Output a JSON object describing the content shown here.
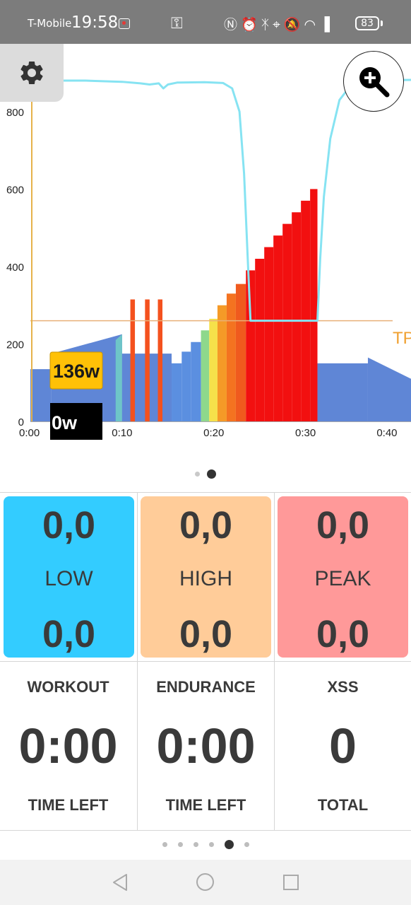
{
  "status_bar": {
    "carrier": "T-Mobile",
    "time": "19:58",
    "battery": "83",
    "icons": [
      "recording-icon",
      "key-icon",
      "nfc-icon",
      "alarm-icon",
      "bluetooth-icon",
      "location-icon",
      "mute-icon",
      "wifi-icon",
      "signal-icon",
      "battery-icon"
    ]
  },
  "chart": {
    "target_power_label": "136w",
    "current_power_label": "0w",
    "threshold_label": "TP"
  },
  "chart_data": {
    "type": "bar",
    "x_ticks": [
      "0:00",
      "0:10",
      "0:20",
      "0:30",
      "0:40"
    ],
    "y_ticks": [
      "0",
      "200",
      "400",
      "600",
      "800"
    ],
    "xlim": [
      0,
      41.5
    ],
    "ylim": [
      0,
      860
    ],
    "threshold": 260,
    "segments": [
      {
        "start": 0,
        "end": 2.3,
        "from": 135,
        "to": 135,
        "color": "#5f86d6"
      },
      {
        "start": 2.3,
        "end": 10,
        "from": 175,
        "to": 225,
        "color": "#5f86d6"
      },
      {
        "start": 9.3,
        "end": 10,
        "from": 210,
        "to": 225,
        "color": "#6ec5c8"
      },
      {
        "start": 10,
        "end": 15.4,
        "from": 175,
        "to": 175,
        "color": "#5f86d6"
      },
      {
        "start": 10.9,
        "end": 11.4,
        "from": 315,
        "to": 315,
        "color": "#f4511e"
      },
      {
        "start": 12.5,
        "end": 13,
        "from": 315,
        "to": 315,
        "color": "#f4511e"
      },
      {
        "start": 13.9,
        "end": 14.4,
        "from": 315,
        "to": 315,
        "color": "#f4511e"
      },
      {
        "start": 15.4,
        "end": 16.5,
        "from": 150,
        "to": 150,
        "color": "#5b8fe0"
      },
      {
        "start": 16.5,
        "end": 17.5,
        "from": 180,
        "to": 180,
        "color": "#5b8fe0"
      },
      {
        "start": 17.5,
        "end": 18.6,
        "from": 205,
        "to": 205,
        "color": "#5b8fe0"
      },
      {
        "start": 18.6,
        "end": 19.5,
        "from": 235,
        "to": 235,
        "color": "#8ed88c"
      },
      {
        "start": 19.5,
        "end": 20.4,
        "from": 265,
        "to": 265,
        "color": "#f6e14a"
      },
      {
        "start": 20.4,
        "end": 21.4,
        "from": 300,
        "to": 300,
        "color": "#f59a27"
      },
      {
        "start": 21.4,
        "end": 22.4,
        "from": 330,
        "to": 330,
        "color": "#f47320"
      },
      {
        "start": 22.4,
        "end": 23.5,
        "from": 355,
        "to": 355,
        "color": "#f05a1e"
      },
      {
        "start": 23.5,
        "end": 24.5,
        "from": 390,
        "to": 390,
        "color": "#f21010"
      },
      {
        "start": 24.5,
        "end": 25.5,
        "from": 420,
        "to": 420,
        "color": "#f21010"
      },
      {
        "start": 25.5,
        "end": 26.5,
        "from": 450,
        "to": 450,
        "color": "#f21010"
      },
      {
        "start": 26.5,
        "end": 27.5,
        "from": 480,
        "to": 480,
        "color": "#f21010"
      },
      {
        "start": 27.5,
        "end": 28.5,
        "from": 510,
        "to": 510,
        "color": "#f21010"
      },
      {
        "start": 28.5,
        "end": 29.5,
        "from": 540,
        "to": 540,
        "color": "#f21010"
      },
      {
        "start": 29.5,
        "end": 30.5,
        "from": 570,
        "to": 570,
        "color": "#f21010"
      },
      {
        "start": 30.5,
        "end": 31.3,
        "from": 600,
        "to": 600,
        "color": "#f21010"
      },
      {
        "start": 31.3,
        "end": 36.8,
        "from": 150,
        "to": 150,
        "color": "#5f86d6"
      },
      {
        "start": 36.8,
        "end": 41.5,
        "from": 165,
        "to": 110,
        "color": "#5f86d6"
      }
    ],
    "line": {
      "color": "#86e3f2",
      "points": [
        [
          0,
          880
        ],
        [
          6,
          880
        ],
        [
          10,
          877
        ],
        [
          12,
          873
        ],
        [
          13,
          870
        ],
        [
          14,
          873
        ],
        [
          14.5,
          860
        ],
        [
          15,
          870
        ],
        [
          16,
          875
        ],
        [
          19,
          876
        ],
        [
          21,
          874
        ],
        [
          22,
          860
        ],
        [
          22.8,
          800
        ],
        [
          23.3,
          640
        ],
        [
          23.7,
          420
        ],
        [
          24,
          260
        ],
        [
          31.3,
          260
        ],
        [
          31.6,
          420
        ],
        [
          32,
          580
        ],
        [
          32.7,
          730
        ],
        [
          33.7,
          830
        ],
        [
          35,
          870
        ],
        [
          36,
          880
        ],
        [
          41.5,
          882
        ]
      ]
    }
  },
  "zones": [
    {
      "value_top": "0,0",
      "label": "LOW",
      "value_bottom": "0,0",
      "color": "#33ccff"
    },
    {
      "value_top": "0,0",
      "label": "HIGH",
      "value_bottom": "0,0",
      "color": "#ffcc99"
    },
    {
      "value_top": "0,0",
      "label": "PEAK",
      "value_bottom": "0,0",
      "color": "#ff9999"
    }
  ],
  "stats": [
    {
      "title": "WORKOUT",
      "value": "0:00",
      "footer": "TIME LEFT"
    },
    {
      "title": "ENDURANCE",
      "value": "0:00",
      "footer": "TIME LEFT"
    },
    {
      "title": "XSS",
      "value": "0",
      "footer": "TOTAL"
    }
  ]
}
